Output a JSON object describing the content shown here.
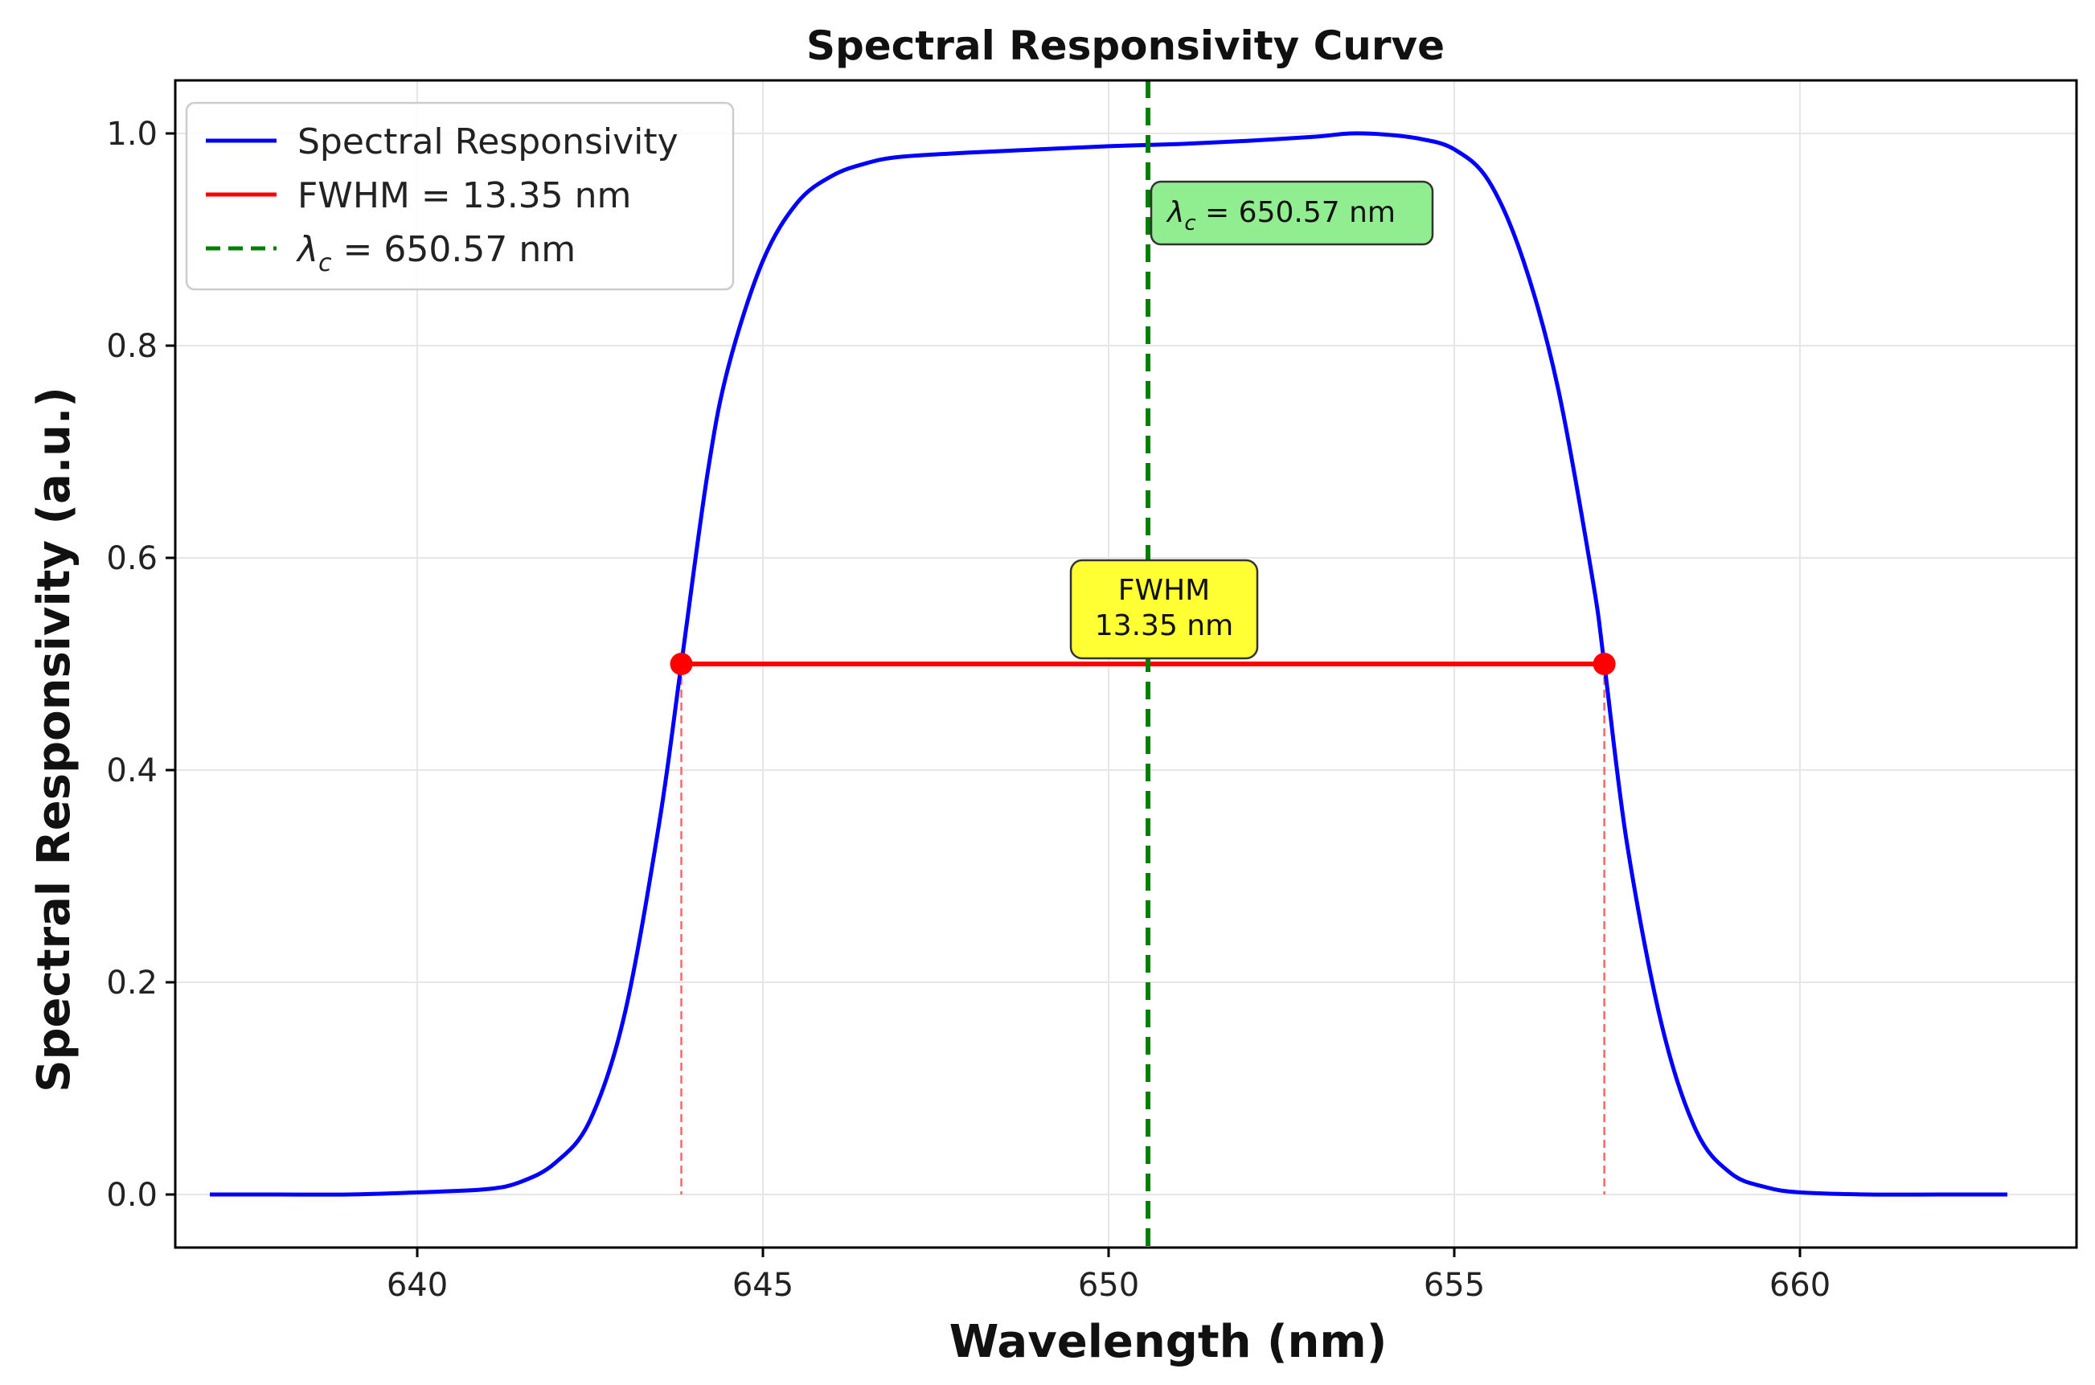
{
  "chart_data": {
    "type": "line",
    "title": "Spectral Responsivity Curve",
    "xlabel": "Wavelength (nm)",
    "ylabel": "Spectral Responsivity (a.u.)",
    "xlim": [
      636.5,
      664.0
    ],
    "ylim": [
      -0.05,
      1.05
    ],
    "xticks": [
      640,
      645,
      650,
      655,
      660
    ],
    "yticks": [
      0.0,
      0.2,
      0.4,
      0.6,
      0.8,
      1.0
    ],
    "xtick_labels": [
      "640",
      "645",
      "650",
      "655",
      "660"
    ],
    "ytick_labels": [
      "0.0",
      "0.2",
      "0.4",
      "0.6",
      "0.8",
      "1.0"
    ],
    "grid": true,
    "legend_position": "top-left",
    "series": [
      {
        "name": "Spectral Responsivity",
        "color": "#0000ff",
        "x": [
          637.0,
          638.0,
          639.0,
          640.0,
          641.0,
          641.5,
          642.0,
          642.5,
          643.0,
          643.5,
          643.82,
          644.2,
          644.5,
          645.0,
          645.5,
          646.0,
          646.5,
          647.0,
          648.0,
          649.0,
          650.0,
          651.0,
          652.0,
          653.0,
          653.5,
          654.0,
          654.5,
          655.0,
          655.5,
          656.0,
          656.5,
          657.0,
          657.17,
          657.5,
          658.0,
          658.5,
          659.0,
          659.5,
          660.0,
          661.0,
          662.0,
          663.0
        ],
        "y": [
          0.0,
          0.0,
          0.0,
          0.002,
          0.005,
          0.012,
          0.03,
          0.07,
          0.17,
          0.35,
          0.5,
          0.68,
          0.78,
          0.88,
          0.935,
          0.96,
          0.972,
          0.978,
          0.982,
          0.985,
          0.988,
          0.99,
          0.993,
          0.997,
          1.0,
          0.999,
          0.995,
          0.985,
          0.955,
          0.88,
          0.76,
          0.58,
          0.5,
          0.33,
          0.16,
          0.06,
          0.02,
          0.007,
          0.002,
          0.0,
          0.0,
          0.0
        ]
      }
    ],
    "fwhm": {
      "legend_label": "FWHM = 13.35 nm",
      "x_left": 643.82,
      "x_right": 657.17,
      "y": 0.5,
      "color": "#ff0000",
      "annotation_lines": [
        "FWHM",
        "13.35 nm"
      ],
      "annotation_bg": "#ffff33"
    },
    "center": {
      "symbol": "λ",
      "subscript": "c",
      "value_text": " = 650.57 nm",
      "x": 650.57,
      "color": "#008000",
      "annotation_bg": "#90ee90"
    },
    "axis_color": "#000000",
    "grid_color": "#e6e6e6",
    "drop_line_color": "#ff6666"
  }
}
